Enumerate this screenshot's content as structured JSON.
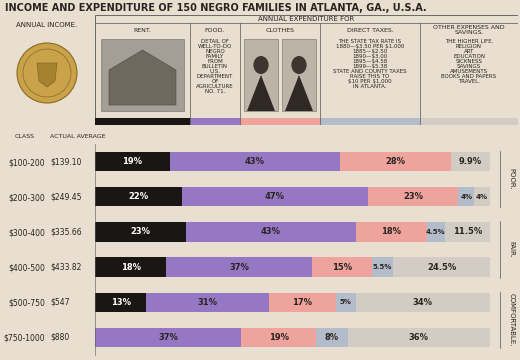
{
  "chart_data": {
    "type": "bar",
    "orientation": "horizontal",
    "stacked": true,
    "data_labels": true,
    "tick_labels": "y",
    "title": "INCOME AND EXPENDITURE OF 150 NEGRO FAMILIES IN ATLANTA, GA., U.S.A.",
    "income_heading": "ANNUAL INCOME.",
    "expenditure_heading": "ANNUAL EXPENDITURE FOR",
    "class_heading": "CLASS",
    "average_heading": "ACTUAL AVERAGE",
    "categories": [
      "$100-200",
      "$200-300",
      "$300-400",
      "$400-500",
      "$500-750",
      "$750-1000"
    ],
    "actual_average": [
      "$139.10",
      "$249.45",
      "$335.66",
      "$433.82",
      "$547",
      "$880"
    ],
    "xlim": [
      0,
      100
    ],
    "series": [
      {
        "name": "RENT.",
        "color": "#1a1614",
        "values": [
          19,
          22,
          23,
          18,
          13,
          null
        ],
        "value_labels": [
          "19%",
          "22%",
          "23%",
          "18%",
          "13%",
          null
        ]
      },
      {
        "name": "FOOD.",
        "color": "#9677c4",
        "values": [
          43,
          47,
          43,
          37,
          31,
          37
        ],
        "value_labels": [
          "43%",
          "47%",
          "43%",
          "37%",
          "31%",
          "37%"
        ],
        "notes": [
          "DETAIL OF",
          "WELL-TO-DO",
          "NEGRO",
          "FAMILY",
          "FROM",
          "BULLETIN",
          "U.S.",
          "DEPARTMENT",
          "OF",
          "AGRICULTURE",
          "NO. 71."
        ]
      },
      {
        "name": "CLOTHES",
        "color": "#eea49c",
        "values": [
          28,
          23,
          18,
          15,
          17,
          19
        ],
        "value_labels": [
          "28%",
          "23%",
          "18%",
          "15%",
          "17%",
          "19%"
        ]
      },
      {
        "name": "DIRECT TAXES.",
        "color": "#b3bccb",
        "values": [
          null,
          4,
          4.5,
          5.5,
          5,
          8
        ],
        "value_labels": [
          null,
          "4%",
          "4.5%",
          "5.5%",
          "5%",
          "8%"
        ],
        "notes": [
          "THE STATE TAX RATE IS",
          "1880—$3.50 PER $1,000",
          "1885—$2.50",
          "1890—$3.00",
          "1895—$4.58",
          "1899—$5.38",
          "STATE AND COUNTY TAXES",
          "RAISE THIS TO",
          "$10 PER $1,000",
          "IN ATLANTA."
        ]
      },
      {
        "name": "OTHER EXPENSES AND SAVINGS.",
        "color": "#d2ccc5",
        "values": [
          9.9,
          4,
          11.5,
          24.5,
          34,
          36
        ],
        "value_labels": [
          "9.9%",
          "4%",
          "11.5%",
          "24.5%",
          "34%",
          "36%"
        ],
        "notes": [
          "THE HIGHER LIFE.",
          "RELIGION",
          "ART",
          "EDUCATION",
          "SICKNESS",
          "SAVINGS",
          "AMUSEMENTS",
          "BOOKS AND PAPERS",
          "TRAVEL."
        ]
      }
    ],
    "groups": [
      {
        "label": "POOR.",
        "categories": [
          "$100-200",
          "$200-300"
        ]
      },
      {
        "label": "FAIR.",
        "categories": [
          "$300-400",
          "$400-500"
        ]
      },
      {
        "label": "COMFORTABLE.",
        "categories": [
          "$500-750",
          "$750-1000"
        ]
      }
    ]
  }
}
